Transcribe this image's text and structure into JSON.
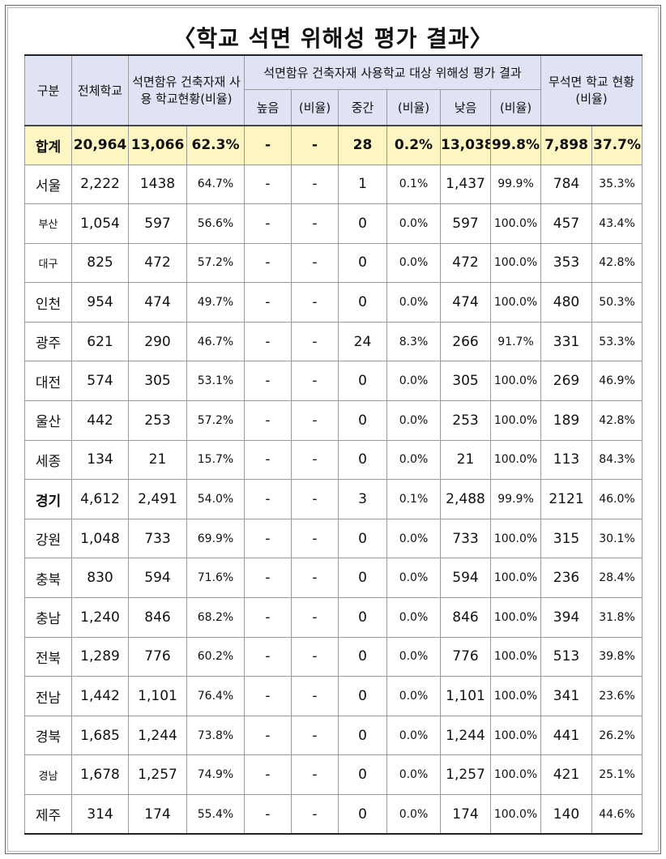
{
  "title": "〈학교 석면 위해성 평가 결과〉",
  "headers": {
    "gubun": "구분",
    "total_schools": "전체학교",
    "asbestos_status": "석면함유 건축자재 사용 학교현황(비율)",
    "risk_eval": "석면함유  건축자재 사용학교 대상 위해성 평가 결과",
    "high": "높음",
    "ratio": "(비율)",
    "medium": "중간",
    "low": "낮음",
    "no_asbestos": "무석면 학교 현황 (비율)"
  },
  "total": {
    "name": "합계",
    "total": "20,964",
    "asb": "13,066",
    "asb_pct": "62.3%",
    "high": "-",
    "high_pct": "-",
    "mid": "28",
    "mid_pct": "0.2%",
    "low": "13,038",
    "low_pct": "99.8%",
    "none": "7,898",
    "none_pct": "37.7%"
  },
  "rows": [
    {
      "name": "서울",
      "total": "2,222",
      "asb": "1438",
      "asb_pct": "64.7%",
      "high": "-",
      "high_pct": "-",
      "mid": "1",
      "mid_pct": "0.1%",
      "low": "1,437",
      "low_pct": "99.9%",
      "none": "784",
      "none_pct": "35.3%"
    },
    {
      "name": "부산",
      "total": "1,054",
      "asb": "597",
      "asb_pct": "56.6%",
      "high": "-",
      "high_pct": "-",
      "mid": "0",
      "mid_pct": "0.0%",
      "low": "597",
      "low_pct": "100.0%",
      "none": "457",
      "none_pct": "43.4%"
    },
    {
      "name": "대구",
      "total": "825",
      "asb": "472",
      "asb_pct": "57.2%",
      "high": "-",
      "high_pct": "-",
      "mid": "0",
      "mid_pct": "0.0%",
      "low": "472",
      "low_pct": "100.0%",
      "none": "353",
      "none_pct": "42.8%"
    },
    {
      "name": "인천",
      "total": "954",
      "asb": "474",
      "asb_pct": "49.7%",
      "high": "-",
      "high_pct": "-",
      "mid": "0",
      "mid_pct": "0.0%",
      "low": "474",
      "low_pct": "100.0%",
      "none": "480",
      "none_pct": "50.3%"
    },
    {
      "name": "광주",
      "total": "621",
      "asb": "290",
      "asb_pct": "46.7%",
      "high": "-",
      "high_pct": "-",
      "mid": "24",
      "mid_pct": "8.3%",
      "low": "266",
      "low_pct": "91.7%",
      "none": "331",
      "none_pct": "53.3%"
    },
    {
      "name": "대전",
      "total": "574",
      "asb": "305",
      "asb_pct": "53.1%",
      "high": "-",
      "high_pct": "-",
      "mid": "0",
      "mid_pct": "0.0%",
      "low": "305",
      "low_pct": "100.0%",
      "none": "269",
      "none_pct": "46.9%"
    },
    {
      "name": "울산",
      "total": "442",
      "asb": "253",
      "asb_pct": "57.2%",
      "high": "-",
      "high_pct": "-",
      "mid": "0",
      "mid_pct": "0.0%",
      "low": "253",
      "low_pct": "100.0%",
      "none": "189",
      "none_pct": "42.8%"
    },
    {
      "name": "세종",
      "total": "134",
      "asb": "21",
      "asb_pct": "15.7%",
      "high": "-",
      "high_pct": "-",
      "mid": "0",
      "mid_pct": "0.0%",
      "low": "21",
      "low_pct": "100.0%",
      "none": "113",
      "none_pct": "84.3%"
    },
    {
      "name": "경기",
      "total": "4,612",
      "asb": "2,491",
      "asb_pct": "54.0%",
      "high": "-",
      "high_pct": "-",
      "mid": "3",
      "mid_pct": "0.1%",
      "low": "2,488",
      "low_pct": "99.9%",
      "none": "2121",
      "none_pct": "46.0%"
    },
    {
      "name": "강원",
      "total": "1,048",
      "asb": "733",
      "asb_pct": "69.9%",
      "high": "-",
      "high_pct": "-",
      "mid": "0",
      "mid_pct": "0.0%",
      "low": "733",
      "low_pct": "100.0%",
      "none": "315",
      "none_pct": "30.1%"
    },
    {
      "name": "충북",
      "total": "830",
      "asb": "594",
      "asb_pct": "71.6%",
      "high": "-",
      "high_pct": "-",
      "mid": "0",
      "mid_pct": "0.0%",
      "low": "594",
      "low_pct": "100.0%",
      "none": "236",
      "none_pct": "28.4%"
    },
    {
      "name": "충남",
      "total": "1,240",
      "asb": "846",
      "asb_pct": "68.2%",
      "high": "-",
      "high_pct": "-",
      "mid": "0",
      "mid_pct": "0.0%",
      "low": "846",
      "low_pct": "100.0%",
      "none": "394",
      "none_pct": "31.8%"
    },
    {
      "name": "전북",
      "total": "1,289",
      "asb": "776",
      "asb_pct": "60.2%",
      "high": "-",
      "high_pct": "-",
      "mid": "0",
      "mid_pct": "0.0%",
      "low": "776",
      "low_pct": "100.0%",
      "none": "513",
      "none_pct": "39.8%"
    },
    {
      "name": "전남",
      "total": "1,442",
      "asb": "1,101",
      "asb_pct": "76.4%",
      "high": "-",
      "high_pct": "-",
      "mid": "0",
      "mid_pct": "0.0%",
      "low": "1,101",
      "low_pct": "100.0%",
      "none": "341",
      "none_pct": "23.6%"
    },
    {
      "name": "경북",
      "total": "1,685",
      "asb": "1,244",
      "asb_pct": "73.8%",
      "high": "-",
      "high_pct": "-",
      "mid": "0",
      "mid_pct": "0.0%",
      "low": "1,244",
      "low_pct": "100.0%",
      "none": "441",
      "none_pct": "26.2%"
    },
    {
      "name": "경남",
      "total": "1,678",
      "asb": "1,257",
      "asb_pct": "74.9%",
      "high": "-",
      "high_pct": "-",
      "mid": "0",
      "mid_pct": "0.0%",
      "low": "1,257",
      "low_pct": "100.0%",
      "none": "421",
      "none_pct": "25.1%"
    },
    {
      "name": "제주",
      "total": "314",
      "asb": "174",
      "asb_pct": "55.4%",
      "high": "-",
      "high_pct": "-",
      "mid": "0",
      "mid_pct": "0.0%",
      "low": "174",
      "low_pct": "100.0%",
      "none": "140",
      "none_pct": "44.6%"
    }
  ]
}
